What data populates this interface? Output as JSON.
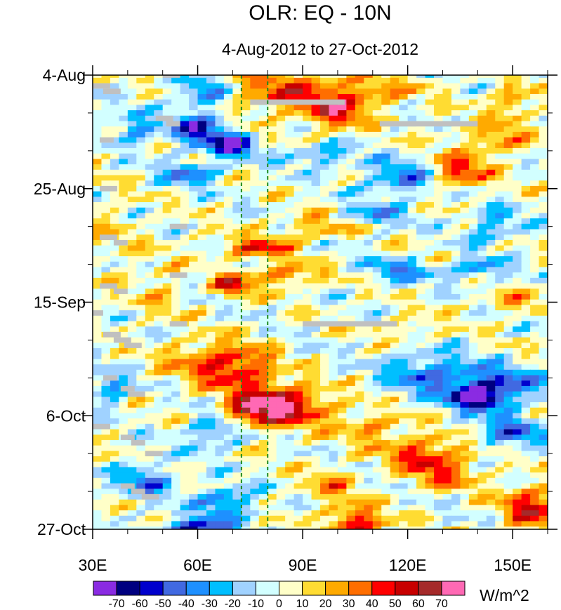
{
  "chart_data": {
    "type": "heatmap",
    "title": "OLR: EQ - 10N",
    "subtitle": "4-Aug-2012 to 27-Oct-2012",
    "xlabel": "",
    "ylabel": "",
    "x_range": [
      30,
      160
    ],
    "y_range_days": [
      0,
      84
    ],
    "x_ticks": [
      {
        "value": 30,
        "label": "30E"
      },
      {
        "value": 60,
        "label": "60E"
      },
      {
        "value": 90,
        "label": "90E"
      },
      {
        "value": 120,
        "label": "120E"
      },
      {
        "value": 150,
        "label": "150E"
      }
    ],
    "x_minor_step": 10,
    "y_ticks": [
      {
        "day": 0,
        "label": "4-Aug"
      },
      {
        "day": 21,
        "label": "25-Aug"
      },
      {
        "day": 42,
        "label": "15-Sep"
      },
      {
        "day": 63,
        "label": "6-Oct"
      },
      {
        "day": 84,
        "label": "27-Oct"
      }
    ],
    "y_minor_step": 7,
    "reference_lines_lon": [
      72.5,
      80
    ],
    "reference_line_color": "#1e8a1e",
    "colorbar": {
      "levels": [
        "-70",
        "-60",
        "-50",
        "-40",
        "-30",
        "-20",
        "-10",
        "0",
        "10",
        "20",
        "30",
        "40",
        "50",
        "60",
        "70"
      ],
      "colors": [
        "#8a2be2",
        "#000080",
        "#0000cd",
        "#4169e1",
        "#1e90ff",
        "#00bfff",
        "#a0d2ff",
        "#d2ffff",
        "#ffffc8",
        "#ffdc32",
        "#ffaa00",
        "#ff6e00",
        "#ff0000",
        "#c80000",
        "#a52a2a",
        "#ff69b4"
      ],
      "units": "W/m^2"
    },
    "missing_color": "#c0c0c0",
    "missing_segments": [
      {
        "lon0": 30,
        "lon1": 35,
        "day": 2
      },
      {
        "lon0": 33,
        "lon1": 38,
        "day": 3
      },
      {
        "lon0": 50,
        "lon1": 55,
        "day": 0
      },
      {
        "lon0": 75,
        "lon1": 102,
        "day": 5
      },
      {
        "lon0": 48,
        "lon1": 53,
        "day": 8
      },
      {
        "lon0": 51,
        "lon1": 55,
        "day": 9
      },
      {
        "lon0": 112,
        "lon1": 140,
        "day": 9
      },
      {
        "lon0": 32,
        "lon1": 36,
        "day": 12
      },
      {
        "lon0": 32,
        "lon1": 37,
        "day": 21
      },
      {
        "lon0": 52,
        "lon1": 57,
        "day": 28
      },
      {
        "lon0": 32,
        "lon1": 37,
        "day": 30
      },
      {
        "lon0": 36,
        "lon1": 40,
        "day": 31
      },
      {
        "lon0": 52,
        "lon1": 57,
        "day": 37
      },
      {
        "lon0": 32,
        "lon1": 37,
        "day": 39
      },
      {
        "lon0": 36,
        "lon1": 40,
        "day": 40
      },
      {
        "lon0": 30,
        "lon1": 33,
        "day": 44
      },
      {
        "lon0": 52,
        "lon1": 57,
        "day": 46
      },
      {
        "lon0": 90,
        "lon1": 117,
        "day": 46
      },
      {
        "lon0": 33,
        "lon1": 38,
        "day": 48
      },
      {
        "lon0": 36,
        "lon1": 41,
        "day": 49
      },
      {
        "lon0": 39,
        "lon1": 44,
        "day": 50
      },
      {
        "lon0": 33,
        "lon1": 37,
        "day": 56
      },
      {
        "lon0": 38,
        "lon1": 42,
        "day": 58
      },
      {
        "lon0": 40,
        "lon1": 45,
        "day": 59
      },
      {
        "lon0": 30,
        "lon1": 35,
        "day": 65
      },
      {
        "lon0": 38,
        "lon1": 42,
        "day": 67
      },
      {
        "lon0": 41,
        "lon1": 45,
        "day": 68
      },
      {
        "lon0": 45,
        "lon1": 50,
        "day": 70
      },
      {
        "lon0": 38,
        "lon1": 42,
        "day": 76
      },
      {
        "lon0": 41,
        "lon1": 45,
        "day": 77
      },
      {
        "lon0": 44,
        "lon1": 49,
        "day": 78
      }
    ],
    "anomaly_features": [
      {
        "lon": 85,
        "day": 3,
        "value": 40,
        "rlon": 18,
        "rday": 4
      },
      {
        "lon": 100,
        "day": 7,
        "value": 45,
        "rlon": 8,
        "rday": 3
      },
      {
        "lon": 110,
        "day": 3,
        "value": 25,
        "rlon": 12,
        "rday": 3
      },
      {
        "lon": 150,
        "day": 5,
        "value": 30,
        "rlon": 6,
        "rday": 3
      },
      {
        "lon": 145,
        "day": 12,
        "value": 30,
        "rlon": 10,
        "rday": 3
      },
      {
        "lon": 60,
        "day": 10,
        "value": -55,
        "rlon": 8,
        "rday": 3
      },
      {
        "lon": 70,
        "day": 13,
        "value": -70,
        "rlon": 6,
        "rday": 2
      },
      {
        "lon": 62,
        "day": 3,
        "value": -40,
        "rlon": 8,
        "rday": 3
      },
      {
        "lon": 42,
        "day": 10,
        "value": -35,
        "rlon": 6,
        "rday": 3
      },
      {
        "lon": 58,
        "day": 18,
        "value": -40,
        "rlon": 8,
        "rday": 2
      },
      {
        "lon": 118,
        "day": 19,
        "value": -40,
        "rlon": 10,
        "rday": 3
      },
      {
        "lon": 135,
        "day": 18,
        "value": 45,
        "rlon": 8,
        "rday": 3
      },
      {
        "lon": 110,
        "day": 26,
        "value": -30,
        "rlon": 10,
        "rday": 2
      },
      {
        "lon": 95,
        "day": 28,
        "value": 30,
        "rlon": 10,
        "rday": 2
      },
      {
        "lon": 145,
        "day": 28,
        "value": -30,
        "rlon": 8,
        "rday": 3
      },
      {
        "lon": 77,
        "day": 32,
        "value": 45,
        "rlon": 10,
        "rday": 2
      },
      {
        "lon": 85,
        "day": 37,
        "value": 35,
        "rlon": 10,
        "rday": 2
      },
      {
        "lon": 118,
        "day": 36,
        "value": -35,
        "rlon": 10,
        "rday": 2
      },
      {
        "lon": 70,
        "day": 39,
        "value": 55,
        "rlon": 5,
        "rday": 2
      },
      {
        "lon": 50,
        "day": 40,
        "value": 15,
        "rlon": 6,
        "rday": 6
      },
      {
        "lon": 150,
        "day": 42,
        "value": 25,
        "rlon": 8,
        "rday": 2
      },
      {
        "lon": 120,
        "day": 47,
        "value": 20,
        "rlon": 8,
        "rday": 2
      },
      {
        "lon": 72,
        "day": 54,
        "value": 45,
        "rlon": 10,
        "rday": 4
      },
      {
        "lon": 60,
        "day": 53,
        "value": 25,
        "rlon": 10,
        "rday": 4
      },
      {
        "lon": 85,
        "day": 61,
        "value": 60,
        "rlon": 12,
        "rday": 4
      },
      {
        "lon": 75,
        "day": 62,
        "value": 45,
        "rlon": 8,
        "rday": 3
      },
      {
        "lon": 145,
        "day": 57,
        "value": -50,
        "rlon": 14,
        "rday": 3
      },
      {
        "lon": 140,
        "day": 60,
        "value": -70,
        "rlon": 8,
        "rday": 2
      },
      {
        "lon": 125,
        "day": 55,
        "value": -35,
        "rlon": 12,
        "rday": 4
      },
      {
        "lon": 110,
        "day": 65,
        "value": 25,
        "rlon": 10,
        "rday": 3
      },
      {
        "lon": 125,
        "day": 70,
        "value": 40,
        "rlon": 12,
        "rday": 3
      },
      {
        "lon": 130,
        "day": 74,
        "value": 30,
        "rlon": 10,
        "rday": 3
      },
      {
        "lon": 150,
        "day": 66,
        "value": -40,
        "rlon": 10,
        "rday": 3
      },
      {
        "lon": 65,
        "day": 66,
        "value": -35,
        "rlon": 8,
        "rday": 3
      },
      {
        "lon": 45,
        "day": 75,
        "value": -40,
        "rlon": 8,
        "rday": 3
      },
      {
        "lon": 68,
        "day": 79,
        "value": -40,
        "rlon": 8,
        "rday": 3
      },
      {
        "lon": 60,
        "day": 84,
        "value": -60,
        "rlon": 10,
        "rday": 2
      },
      {
        "lon": 105,
        "day": 83,
        "value": 55,
        "rlon": 8,
        "rday": 3
      },
      {
        "lon": 155,
        "day": 80,
        "value": 50,
        "rlon": 8,
        "rday": 4
      },
      {
        "lon": 98,
        "day": 76,
        "value": 25,
        "rlon": 8,
        "rday": 3
      },
      {
        "lon": 35,
        "day": 58,
        "value": -35,
        "rlon": 5,
        "rday": 3
      },
      {
        "lon": 35,
        "day": 30,
        "value": 10,
        "rlon": 8,
        "rday": 10
      },
      {
        "lon": 95,
        "day": 15,
        "value": -30,
        "rlon": 10,
        "rday": 2
      },
      {
        "lon": 140,
        "day": 36,
        "value": -35,
        "rlon": 8,
        "rday": 2
      }
    ]
  }
}
